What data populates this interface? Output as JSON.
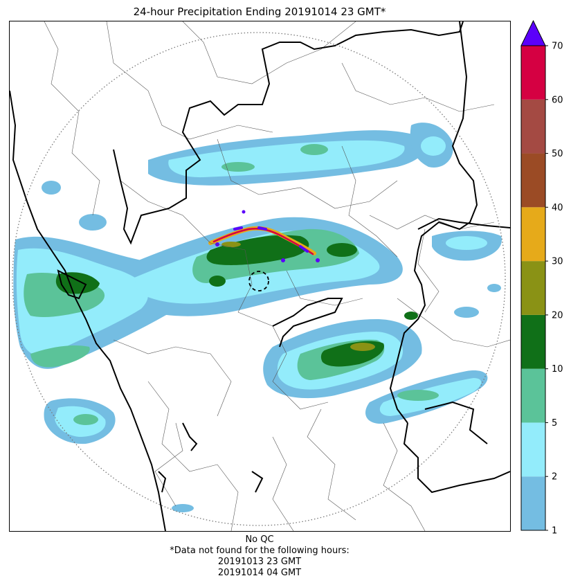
{
  "title": "24-hour Precipitation Ending 20191014 23 GMT*",
  "colorbar": {
    "ticks": [
      "1",
      "2",
      "5",
      "10",
      "20",
      "30",
      "40",
      "50",
      "60",
      "70"
    ],
    "levels": [
      {
        "from": "1",
        "to": "2",
        "color": "#74bde2"
      },
      {
        "from": "2",
        "to": "5",
        "color": "#93ecfb"
      },
      {
        "from": "5",
        "to": "10",
        "color": "#5bc399"
      },
      {
        "from": "10",
        "to": "20",
        "color": "#107018"
      },
      {
        "from": "20",
        "to": "30",
        "color": "#8a9215"
      },
      {
        "from": "30",
        "to": "40",
        "color": "#e6aa1a"
      },
      {
        "from": "40",
        "to": "50",
        "color": "#9b4b25"
      },
      {
        "from": "50",
        "to": "60",
        "color": "#a44a43"
      },
      {
        "from": "60",
        "to": "70",
        "color": "#d50042"
      }
    ],
    "overflow_color": "#5b00fa",
    "overflow_shape": "triangle-up"
  },
  "footer": {
    "qc": "No QC",
    "note": "*Data not found for the following hours:",
    "missing_hours": [
      "20191013 23 GMT",
      "20191014 04 GMT"
    ]
  }
}
